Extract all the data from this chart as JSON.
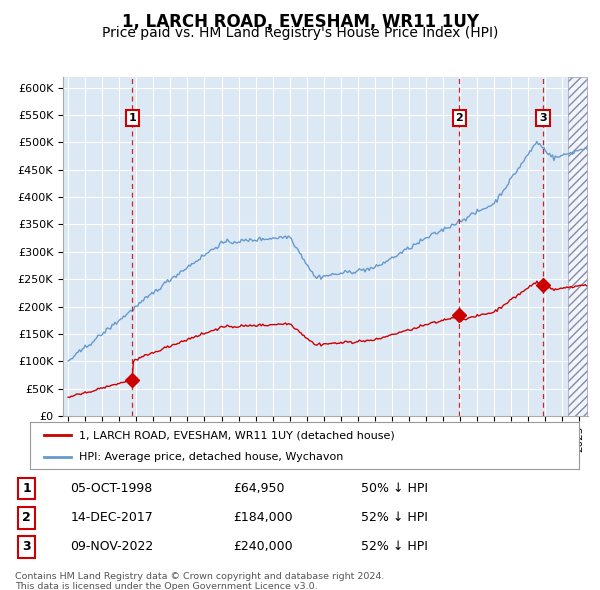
{
  "title": "1, LARCH ROAD, EVESHAM, WR11 1UY",
  "subtitle": "Price paid vs. HM Land Registry's House Price Index (HPI)",
  "title_fontsize": 12,
  "subtitle_fontsize": 10,
  "background_color": "#ffffff",
  "plot_bg_color": "#dce9f5",
  "ylim": [
    0,
    620000
  ],
  "yticks": [
    0,
    50000,
    100000,
    150000,
    200000,
    250000,
    300000,
    350000,
    400000,
    450000,
    500000,
    550000,
    600000
  ],
  "ytick_labels": [
    "£0",
    "£50K",
    "£100K",
    "£150K",
    "£200K",
    "£250K",
    "£300K",
    "£350K",
    "£400K",
    "£450K",
    "£500K",
    "£550K",
    "£600K"
  ],
  "xlim_start": 1994.7,
  "xlim_end": 2025.5,
  "sale_dates": [
    1998.76,
    2017.95,
    2022.86
  ],
  "sale_prices": [
    64950,
    184000,
    240000
  ],
  "sale_labels": [
    "1",
    "2",
    "3"
  ],
  "sale_date_strs": [
    "05-OCT-1998",
    "14-DEC-2017",
    "09-NOV-2022"
  ],
  "sale_price_strs": [
    "£64,950",
    "£184,000",
    "£240,000"
  ],
  "sale_pct_strs": [
    "50% ↓ HPI",
    "52% ↓ HPI",
    "52% ↓ HPI"
  ],
  "legend_label_red": "1, LARCH ROAD, EVESHAM, WR11 1UY (detached house)",
  "legend_label_blue": "HPI: Average price, detached house, Wychavon",
  "footer_line1": "Contains HM Land Registry data © Crown copyright and database right 2024.",
  "footer_line2": "This data is licensed under the Open Government Licence v3.0.",
  "red_color": "#cc0000",
  "blue_color": "#6699cc",
  "grid_color": "#ffffff",
  "label_box_color": "#cc0000"
}
